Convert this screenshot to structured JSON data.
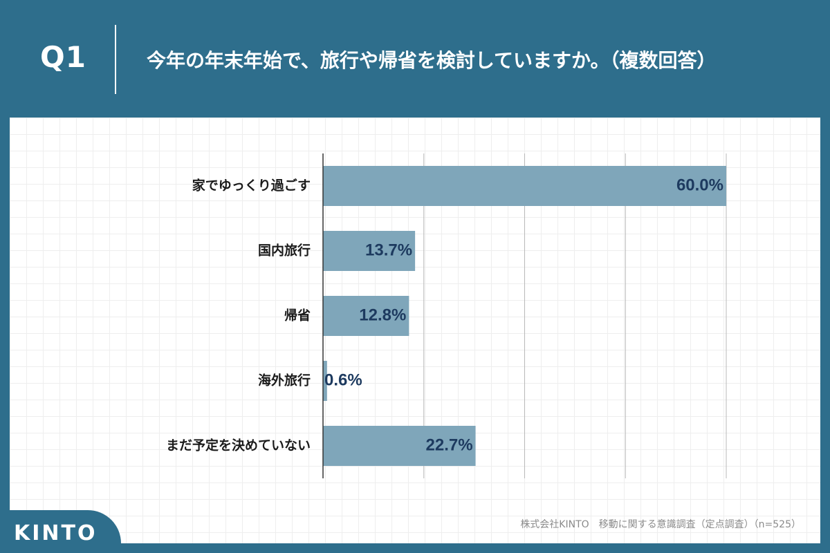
{
  "header": {
    "question": "Q1",
    "title": "今年の年末年始で、旅行や帰省を検討していますか。（複数回答）"
  },
  "chart_data": {
    "type": "bar",
    "orientation": "horizontal",
    "categories": [
      "家でゆっくり過ごす",
      "国内旅行",
      "帰省",
      "海外旅行",
      "まだ予定を決めていない"
    ],
    "values": [
      60.0,
      13.7,
      12.8,
      0.6,
      22.7
    ],
    "data_labels": [
      "60.0%",
      "13.7%",
      "12.8%",
      "0.6%",
      "22.7%"
    ],
    "xlim": [
      0,
      60
    ],
    "grid": true,
    "bar_color": "#7fa6ba",
    "label_color": "#1d3a5f"
  },
  "footer": {
    "logo": "KINTO",
    "source": "株式会社KINTO　移動に関する意識調査（定点調査）（n=525）"
  }
}
